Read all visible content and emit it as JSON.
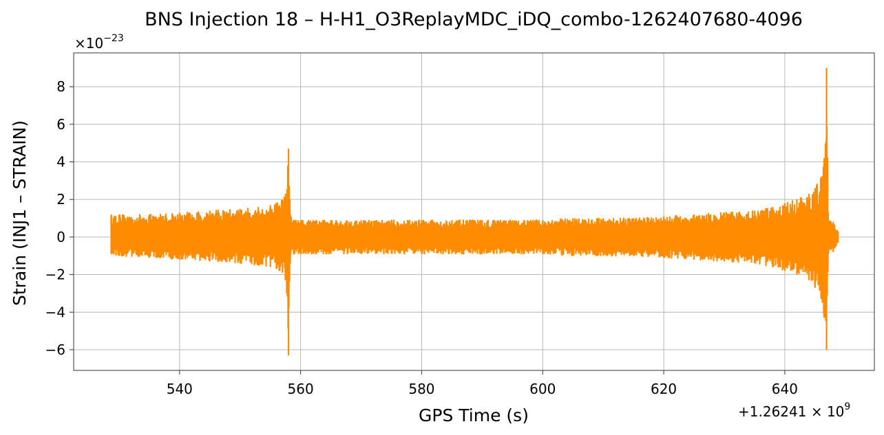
{
  "chart_data": {
    "type": "line",
    "title": "BNS Injection 18 – H-H1_O3ReplayMDC_iDQ_combo-1262407680-4096",
    "xlabel": "GPS Time (s)",
    "ylabel": "Strain (INJ1 – STRAIN)",
    "x_offset_base": "+1.26241",
    "x_offset_exp": "9",
    "y_multiplier_base": "×10",
    "y_multiplier_exp": "−23",
    "xlim": [
      522.5,
      654.8
    ],
    "ylim": [
      -7.1,
      9.8
    ],
    "y_scale_exponent": -23,
    "grid": true,
    "color": "#ff8c00",
    "x_ticks": [
      540,
      560,
      580,
      600,
      620,
      640
    ],
    "x_tick_labels": [
      "540",
      "560",
      "580",
      "600",
      "620",
      "640"
    ],
    "y_ticks": [
      -6,
      -4,
      -2,
      0,
      2,
      4,
      6,
      8
    ],
    "y_tick_labels": [
      "−6",
      "−4",
      "−2",
      "0",
      "2",
      "4",
      "6",
      "8"
    ],
    "series": [
      {
        "style": "dense oscillation envelope",
        "x": [
          528.7,
          530,
          535,
          540,
          545,
          550,
          553,
          555,
          556,
          557,
          557.5,
          558.0,
          558.3,
          559,
          560,
          565,
          570,
          575,
          580,
          585,
          590,
          595,
          600,
          605,
          610,
          615,
          620,
          625,
          630,
          635,
          638,
          640,
          642,
          644,
          645,
          646,
          646.5,
          646.9,
          647.2,
          648,
          648.8
        ],
        "upper": [
          1.2,
          1.2,
          1.2,
          1.3,
          1.4,
          1.5,
          1.6,
          1.7,
          1.8,
          2.0,
          2.3,
          4.7,
          1.2,
          0.9,
          0.9,
          0.9,
          0.9,
          0.9,
          0.9,
          0.9,
          0.9,
          0.9,
          0.9,
          1.0,
          1.0,
          1.0,
          1.1,
          1.2,
          1.3,
          1.4,
          1.6,
          1.8,
          2.0,
          2.3,
          2.6,
          3.2,
          4.2,
          9.0,
          0.9,
          0.8,
          0.3
        ],
        "lower": [
          -0.9,
          -1.0,
          -1.1,
          -1.2,
          -1.3,
          -1.4,
          -1.5,
          -1.6,
          -1.7,
          -1.9,
          -2.3,
          -6.3,
          -1.0,
          -0.9,
          -0.9,
          -0.9,
          -0.9,
          -0.9,
          -0.9,
          -0.9,
          -0.9,
          -0.9,
          -0.9,
          -1.0,
          -1.0,
          -1.0,
          -1.1,
          -1.2,
          -1.3,
          -1.4,
          -1.6,
          -1.8,
          -2.0,
          -2.3,
          -2.7,
          -3.3,
          -4.3,
          -6.0,
          -0.9,
          -0.8,
          -0.3
        ]
      }
    ]
  }
}
